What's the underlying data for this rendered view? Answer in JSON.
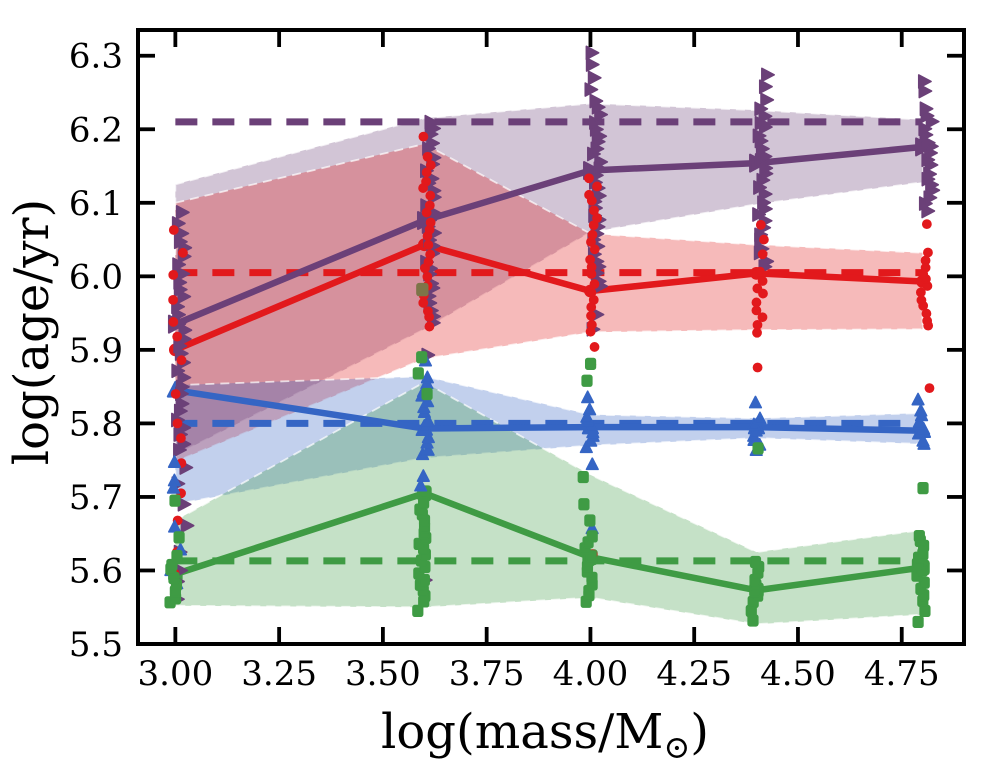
{
  "chart_data": {
    "type": "line",
    "title": "",
    "xlabel_main": "log(mass/M",
    "xlabel_sub": "⊙",
    "xlabel_end": ")",
    "ylabel": "log(age/yr)",
    "xlim": [
      2.91,
      4.9
    ],
    "ylim": [
      5.5,
      6.335
    ],
    "grid": false,
    "legend_position": "none",
    "xticks": [
      3.0,
      3.25,
      3.5,
      3.75,
      4.0,
      4.25,
      4.5,
      4.75
    ],
    "xtick_labels": [
      "3.00",
      "3.25",
      "3.50",
      "3.75",
      "4.00",
      "4.25",
      "4.50",
      "4.75"
    ],
    "yticks": [
      5.5,
      5.6,
      5.7,
      5.8,
      5.9,
      6.0,
      6.1,
      6.2,
      6.3
    ],
    "ytick_labels": [
      "5.5",
      "5.6",
      "5.7",
      "5.8",
      "5.9",
      "6.0",
      "6.1",
      "6.2",
      "6.3"
    ],
    "x": [
      3.0,
      3.6,
      4.0,
      4.4,
      4.8
    ],
    "series": [
      {
        "name": "purple",
        "color": "#6b4078",
        "marker": "triangle-right",
        "mean": [
          5.935,
          6.076,
          6.144,
          6.154,
          6.176
        ],
        "median_hline": 6.21,
        "band_upper": [
          6.125,
          6.215,
          6.235,
          6.226,
          6.213
        ],
        "band_lower": [
          5.757,
          5.928,
          6.06,
          6.098,
          6.128
        ],
        "scatter": [
          {
            "x": 3.0,
            "dense": [
              [
                5.762,
                6.062,
                0.011
              ]
            ],
            "pts": [
              6.087,
              6.072,
              5.785,
              5.74,
              5.718,
              5.69,
              5.661,
              5.625,
              5.6,
              5.585,
              5.561
            ]
          },
          {
            "x": 3.6,
            "dense": [
              [
                5.935,
                6.218,
                0.0095
              ]
            ],
            "pts": [
              5.893,
              5.587
            ]
          },
          {
            "x": 4.0,
            "dense": [
              [
                5.985,
                6.245,
                0.009
              ]
            ],
            "pts": [
              6.304,
              6.288,
              6.27,
              6.254,
              5.948,
              5.928
            ]
          },
          {
            "x": 4.4,
            "dense": [
              [
                6.012,
                6.228,
                0.009
              ]
            ],
            "pts": [
              6.274,
              6.258,
              6.24
            ]
          },
          {
            "x": 4.8,
            "dense": [
              [
                6.09,
                6.228,
                0.0085
              ]
            ],
            "pts": [
              6.265,
              6.252
            ]
          }
        ]
      },
      {
        "name": "red",
        "color": "#e2191c",
        "marker": "circle",
        "mean": [
          5.9,
          6.043,
          5.98,
          6.004,
          5.993
        ],
        "median_hline": 6.005,
        "band_upper": [
          6.1,
          6.18,
          6.058,
          6.043,
          6.032
        ],
        "band_lower": [
          5.748,
          5.888,
          5.924,
          5.927,
          5.928
        ],
        "scatter": [
          {
            "x": 3.0,
            "dense": [],
            "pts": [
              6.063,
              6.032,
              6.002,
              5.968,
              5.938,
              5.918,
              5.886,
              5.84,
              5.8,
              5.78,
              5.746,
              5.705,
              5.668,
              5.625,
              5.596
            ]
          },
          {
            "x": 3.6,
            "dense": [
              [
                5.932,
                6.165,
                0.011
              ]
            ],
            "pts": [
              6.19
            ]
          },
          {
            "x": 4.0,
            "dense": [
              [
                5.925,
                6.135,
                0.011
              ]
            ],
            "pts": [
              5.904,
              5.88,
              5.622
            ]
          },
          {
            "x": 4.4,
            "dense": [
              [
                5.925,
                6.012,
                0.01
              ]
            ],
            "pts": [
              6.07,
              6.05,
              6.03,
              5.876
            ]
          },
          {
            "x": 4.8,
            "dense": [
              [
                5.932,
                6.035,
                0.009
              ]
            ],
            "pts": [
              6.071,
              5.848
            ]
          }
        ]
      },
      {
        "name": "blue",
        "color": "#3565c4",
        "marker": "triangle-up",
        "mean": [
          5.845,
          5.793,
          5.795,
          5.795,
          5.79
        ],
        "median_hline": 5.8,
        "band_upper": [
          5.852,
          5.864,
          5.812,
          5.807,
          5.814
        ],
        "band_lower": [
          5.69,
          5.753,
          5.77,
          5.78,
          5.772
        ],
        "scatter": [
          {
            "x": 3.0,
            "dense": [],
            "pts": [
              5.747,
              5.722,
              5.712,
              5.659,
              5.628,
              5.6,
              5.582
            ]
          },
          {
            "x": 3.6,
            "dense": [
              [
                5.757,
                5.862,
                0.008
              ]
            ],
            "pts": [
              5.885,
              5.728,
              5.715
            ]
          },
          {
            "x": 4.0,
            "dense": [
              [
                5.768,
                5.822,
                0.007
              ]
            ],
            "pts": [
              5.835,
              5.744,
              5.657
            ]
          },
          {
            "x": 4.4,
            "dense": [
              [
                5.763,
                5.81,
                0.007
              ]
            ],
            "pts": [
              5.828
            ]
          },
          {
            "x": 4.8,
            "dense": [
              [
                5.771,
                5.818,
                0.0065
              ]
            ],
            "pts": [
              5.832
            ]
          }
        ]
      },
      {
        "name": "green",
        "color": "#3f9b44",
        "marker": "square",
        "mean": [
          5.595,
          5.705,
          5.618,
          5.573,
          5.604
        ],
        "median_hline": 5.613,
        "band_upper": [
          5.668,
          5.856,
          5.73,
          5.625,
          5.655
        ],
        "band_lower": [
          5.552,
          5.55,
          5.563,
          5.527,
          5.54
        ],
        "scatter": [
          {
            "x": 3.0,
            "dense": [
              [
                5.555,
                5.618,
                0.009
              ]
            ],
            "pts": [
              5.695,
              5.645
            ]
          },
          {
            "x": 3.6,
            "dense": [
              [
                5.556,
                5.695,
                0.008
              ]
            ],
            "pts": [
              5.89,
              5.868,
              5.84,
              5.545
            ]
          },
          {
            "x": 4.0,
            "dense": [
              [
                5.557,
                5.652,
                0.008
              ]
            ],
            "pts": [
              5.881,
              5.858,
              5.727,
              5.69,
              5.668
            ]
          },
          {
            "x": 4.4,
            "dense": [
              [
                5.557,
                5.617,
                0.008
              ]
            ],
            "pts": [
              5.766,
              5.545,
              5.532
            ]
          },
          {
            "x": 4.8,
            "dense": [
              [
                5.56,
                5.652,
                0.008
              ]
            ],
            "pts": [
              5.712,
              5.545,
              5.53
            ]
          }
        ]
      }
    ],
    "extra_points": [
      {
        "x": 3.595,
        "y": 5.982,
        "color": "#7d7448",
        "marker": "square"
      }
    ]
  }
}
